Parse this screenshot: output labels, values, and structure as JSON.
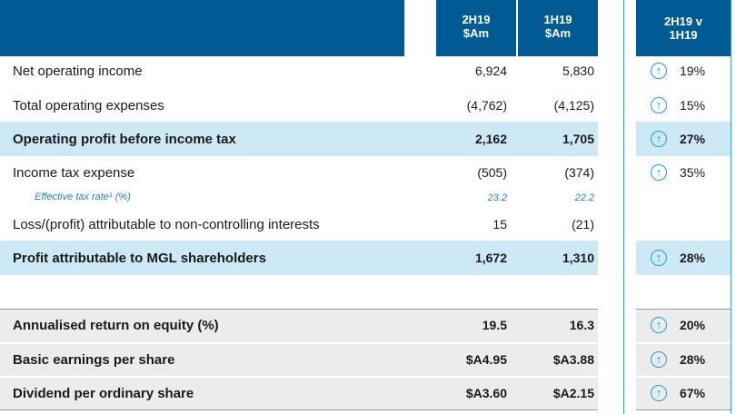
{
  "header": {
    "col1_line1": "2H19",
    "col1_line2": "$Am",
    "col2_line1": "1H19",
    "col2_line2": "$Am",
    "col3_line1": "2H19 v",
    "col3_line2": "1H19"
  },
  "rows": [
    {
      "label": "Net operating income",
      "v1": "6,924",
      "v2": "5,830",
      "change": "19%"
    },
    {
      "label": "Total operating expenses",
      "v1": "(4,762)",
      "v2": "(4,125)",
      "change": "15%"
    },
    {
      "label": "Operating profit before income tax",
      "v1": "2,162",
      "v2": "1,705",
      "change": "27%"
    },
    {
      "label": "Income tax expense",
      "v1": "(505)",
      "v2": "(374)",
      "change": "35%"
    },
    {
      "label": "Effective tax rate¹ (%)",
      "v1": "23.2",
      "v2": "22.2"
    },
    {
      "label": "Loss/(profit) attributable to non-controlling interests",
      "v1": "15",
      "v2": "(21)"
    },
    {
      "label": "Profit attributable to MGL shareholders",
      "v1": "1,672",
      "v2": "1,310",
      "change": "28%"
    }
  ],
  "metrics": [
    {
      "label": "Annualised return on equity (%)",
      "v1": "19.5",
      "v2": "16.3",
      "change": "20%"
    },
    {
      "label": "Basic earnings per share",
      "v1": "$A4.95",
      "v2": "$A3.88",
      "change": "28%"
    },
    {
      "label": "Dividend per ordinary share",
      "v1": "$A3.60",
      "v2": "$A2.15",
      "change": "67%"
    }
  ],
  "icons": {
    "up_arrow": "↑"
  },
  "colors": {
    "header_blue": "#005b94",
    "highlight": "#cde9f6",
    "metric_bg": "#ececec",
    "accent": "#19a3c9"
  }
}
